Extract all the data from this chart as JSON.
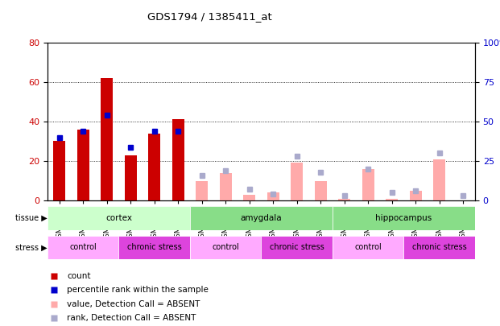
{
  "title": "GDS1794 / 1385411_at",
  "samples": [
    "GSM53314",
    "GSM53315",
    "GSM53316",
    "GSM53311",
    "GSM53312",
    "GSM53313",
    "GSM53305",
    "GSM53306",
    "GSM53307",
    "GSM53299",
    "GSM53300",
    "GSM53301",
    "GSM53308",
    "GSM53309",
    "GSM53310",
    "GSM53302",
    "GSM53303",
    "GSM53304"
  ],
  "count_values": [
    30,
    36,
    62,
    23,
    34,
    41,
    null,
    null,
    null,
    null,
    null,
    null,
    null,
    null,
    null,
    null,
    null,
    null
  ],
  "percentile_values": [
    32,
    35,
    43,
    27,
    35,
    35,
    null,
    null,
    null,
    null,
    null,
    null,
    null,
    null,
    null,
    null,
    null,
    null
  ],
  "absent_value_values": [
    null,
    null,
    null,
    null,
    null,
    null,
    10,
    14,
    3,
    4,
    19,
    10,
    1,
    16,
    1,
    5,
    21,
    null
  ],
  "absent_rank_values": [
    null,
    null,
    null,
    null,
    null,
    null,
    16,
    19,
    7,
    4,
    28,
    18,
    3,
    20,
    5,
    6,
    30,
    3
  ],
  "tissue_groups": [
    {
      "label": "cortex",
      "start": 0,
      "end": 6,
      "color": "#ccffcc"
    },
    {
      "label": "amygdala",
      "start": 6,
      "end": 12,
      "color": "#88dd88"
    },
    {
      "label": "hippocampus",
      "start": 12,
      "end": 18,
      "color": "#88dd88"
    }
  ],
  "stress_groups": [
    {
      "label": "control",
      "start": 0,
      "end": 3,
      "color": "#ffaaff"
    },
    {
      "label": "chronic stress",
      "start": 3,
      "end": 6,
      "color": "#dd44dd"
    },
    {
      "label": "control",
      "start": 6,
      "end": 9,
      "color": "#ffaaff"
    },
    {
      "label": "chronic stress",
      "start": 9,
      "end": 12,
      "color": "#dd44dd"
    },
    {
      "label": "control",
      "start": 12,
      "end": 15,
      "color": "#ffaaff"
    },
    {
      "label": "chronic stress",
      "start": 15,
      "end": 18,
      "color": "#dd44dd"
    }
  ],
  "ylim_left": [
    0,
    80
  ],
  "ylim_right": [
    0,
    100
  ],
  "color_count": "#cc0000",
  "color_percentile": "#0000cc",
  "color_absent_value": "#ffaaaa",
  "color_absent_rank": "#aaaacc",
  "yticks_left": [
    0,
    20,
    40,
    60,
    80
  ],
  "yticks_right": [
    0,
    25,
    50,
    75,
    100
  ],
  "legend": [
    {
      "label": "count",
      "color": "#cc0000"
    },
    {
      "label": "percentile rank within the sample",
      "color": "#0000cc"
    },
    {
      "label": "value, Detection Call = ABSENT",
      "color": "#ffaaaa"
    },
    {
      "label": "rank, Detection Call = ABSENT",
      "color": "#aaaacc"
    }
  ]
}
